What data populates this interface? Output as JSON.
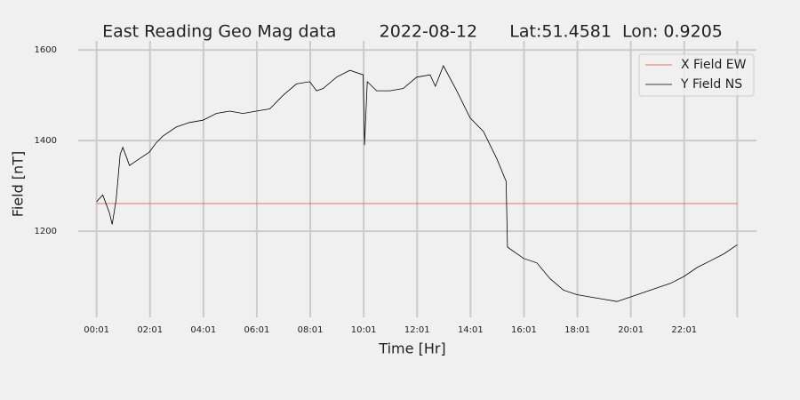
{
  "chart_data": {
    "type": "line",
    "title": "East Reading Geo Mag data        2022-08-12      Lat:51.4581  Lon: 0.9205",
    "xlabel": "Time  [Hr]",
    "ylabel": "Field  [nT]",
    "xlim": [
      -0.67,
      24.72
    ],
    "ylim": [
      1010,
      1620
    ],
    "xticks": [
      {
        "value": 0.0167,
        "label": "00:01"
      },
      {
        "value": 2.0167,
        "label": "02:01"
      },
      {
        "value": 4.0167,
        "label": "04:01"
      },
      {
        "value": 6.0167,
        "label": "06:01"
      },
      {
        "value": 8.0167,
        "label": "08:01"
      },
      {
        "value": 10.0167,
        "label": "10:01"
      },
      {
        "value": 12.0167,
        "label": "12:01"
      },
      {
        "value": 14.0167,
        "label": "14:01"
      },
      {
        "value": 16.0167,
        "label": "16:01"
      },
      {
        "value": 18.0167,
        "label": "18:01"
      },
      {
        "value": 20.0167,
        "label": "20:01"
      },
      {
        "value": 22.0167,
        "label": "22:01"
      },
      24.0
    ],
    "yticks": [
      1200,
      1400,
      1600
    ],
    "grid": true,
    "legend": "upper right",
    "series": [
      {
        "name": "X Field EW",
        "color": "#e24a33",
        "x": [
          0.0167,
          24.0
        ],
        "values": [
          1261,
          1261
        ]
      },
      {
        "name": "Y Field NS",
        "color": "#000000",
        "x": [
          0.0167,
          0.25,
          0.5,
          0.6,
          0.75,
          0.9,
          1.0,
          1.25,
          1.5,
          2.0,
          2.25,
          2.5,
          3.0,
          3.5,
          4.0,
          4.5,
          5.0,
          5.5,
          6.0,
          6.5,
          7.0,
          7.5,
          8.0,
          8.25,
          8.5,
          9.0,
          9.5,
          10.0,
          10.05,
          10.15,
          10.5,
          11.0,
          11.5,
          12.0,
          12.5,
          12.7,
          13.0,
          13.5,
          14.0,
          14.5,
          15.0,
          15.35,
          15.4,
          16.0,
          16.5,
          17.0,
          17.5,
          18.0,
          18.5,
          19.0,
          19.5,
          20.0,
          20.5,
          21.0,
          21.5,
          22.0,
          22.5,
          23.0,
          23.5,
          24.0
        ],
        "values": [
          1265,
          1280,
          1240,
          1215,
          1270,
          1370,
          1385,
          1345,
          1355,
          1375,
          1395,
          1410,
          1430,
          1440,
          1445,
          1460,
          1465,
          1460,
          1465,
          1470,
          1500,
          1525,
          1530,
          1510,
          1515,
          1540,
          1555,
          1545,
          1390,
          1530,
          1510,
          1510,
          1515,
          1540,
          1545,
          1520,
          1565,
          1510,
          1450,
          1420,
          1360,
          1310,
          1165,
          1140,
          1130,
          1095,
          1070,
          1060,
          1055,
          1050,
          1045,
          1055,
          1065,
          1075,
          1085,
          1100,
          1120,
          1135,
          1150,
          1170
        ]
      }
    ]
  }
}
